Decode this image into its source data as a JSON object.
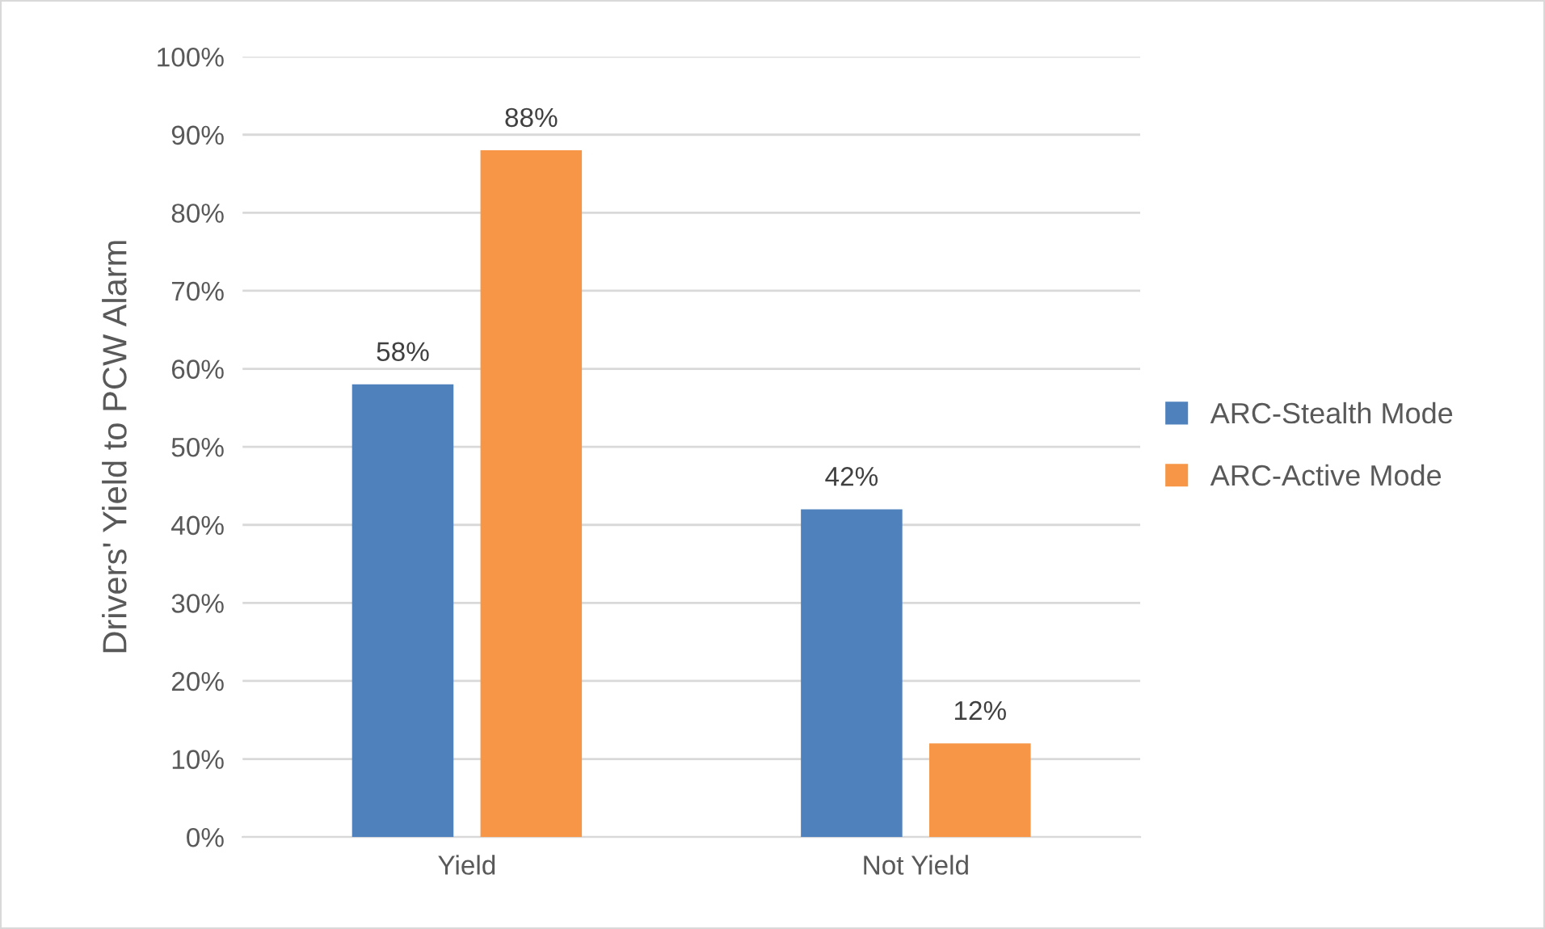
{
  "chart_data": {
    "type": "bar",
    "ylabel": "Drivers' Yield to PCW Alarm",
    "categories": [
      "Yield",
      "Not Yield"
    ],
    "series": [
      {
        "name": "ARC-Stealth Mode",
        "color": "#4f81bd",
        "values": [
          58,
          42
        ],
        "value_labels": [
          "58%",
          "42%"
        ]
      },
      {
        "name": "ARC-Active Mode",
        "color": "#f79646",
        "values": [
          88,
          12
        ],
        "value_labels": [
          "88%",
          "12%"
        ]
      }
    ],
    "ylim": [
      0,
      100
    ],
    "yticks": [
      {
        "value": 0,
        "label": "0%"
      },
      {
        "value": 10,
        "label": "10%"
      },
      {
        "value": 20,
        "label": "20%"
      },
      {
        "value": 30,
        "label": "30%"
      },
      {
        "value": 40,
        "label": "40%"
      },
      {
        "value": 50,
        "label": "50%"
      },
      {
        "value": 60,
        "label": "60%"
      },
      {
        "value": 70,
        "label": "70%"
      },
      {
        "value": 80,
        "label": "80%"
      },
      {
        "value": 90,
        "label": "90%"
      },
      {
        "value": 100,
        "label": "100%"
      }
    ],
    "grid": "y",
    "legend": "right"
  }
}
